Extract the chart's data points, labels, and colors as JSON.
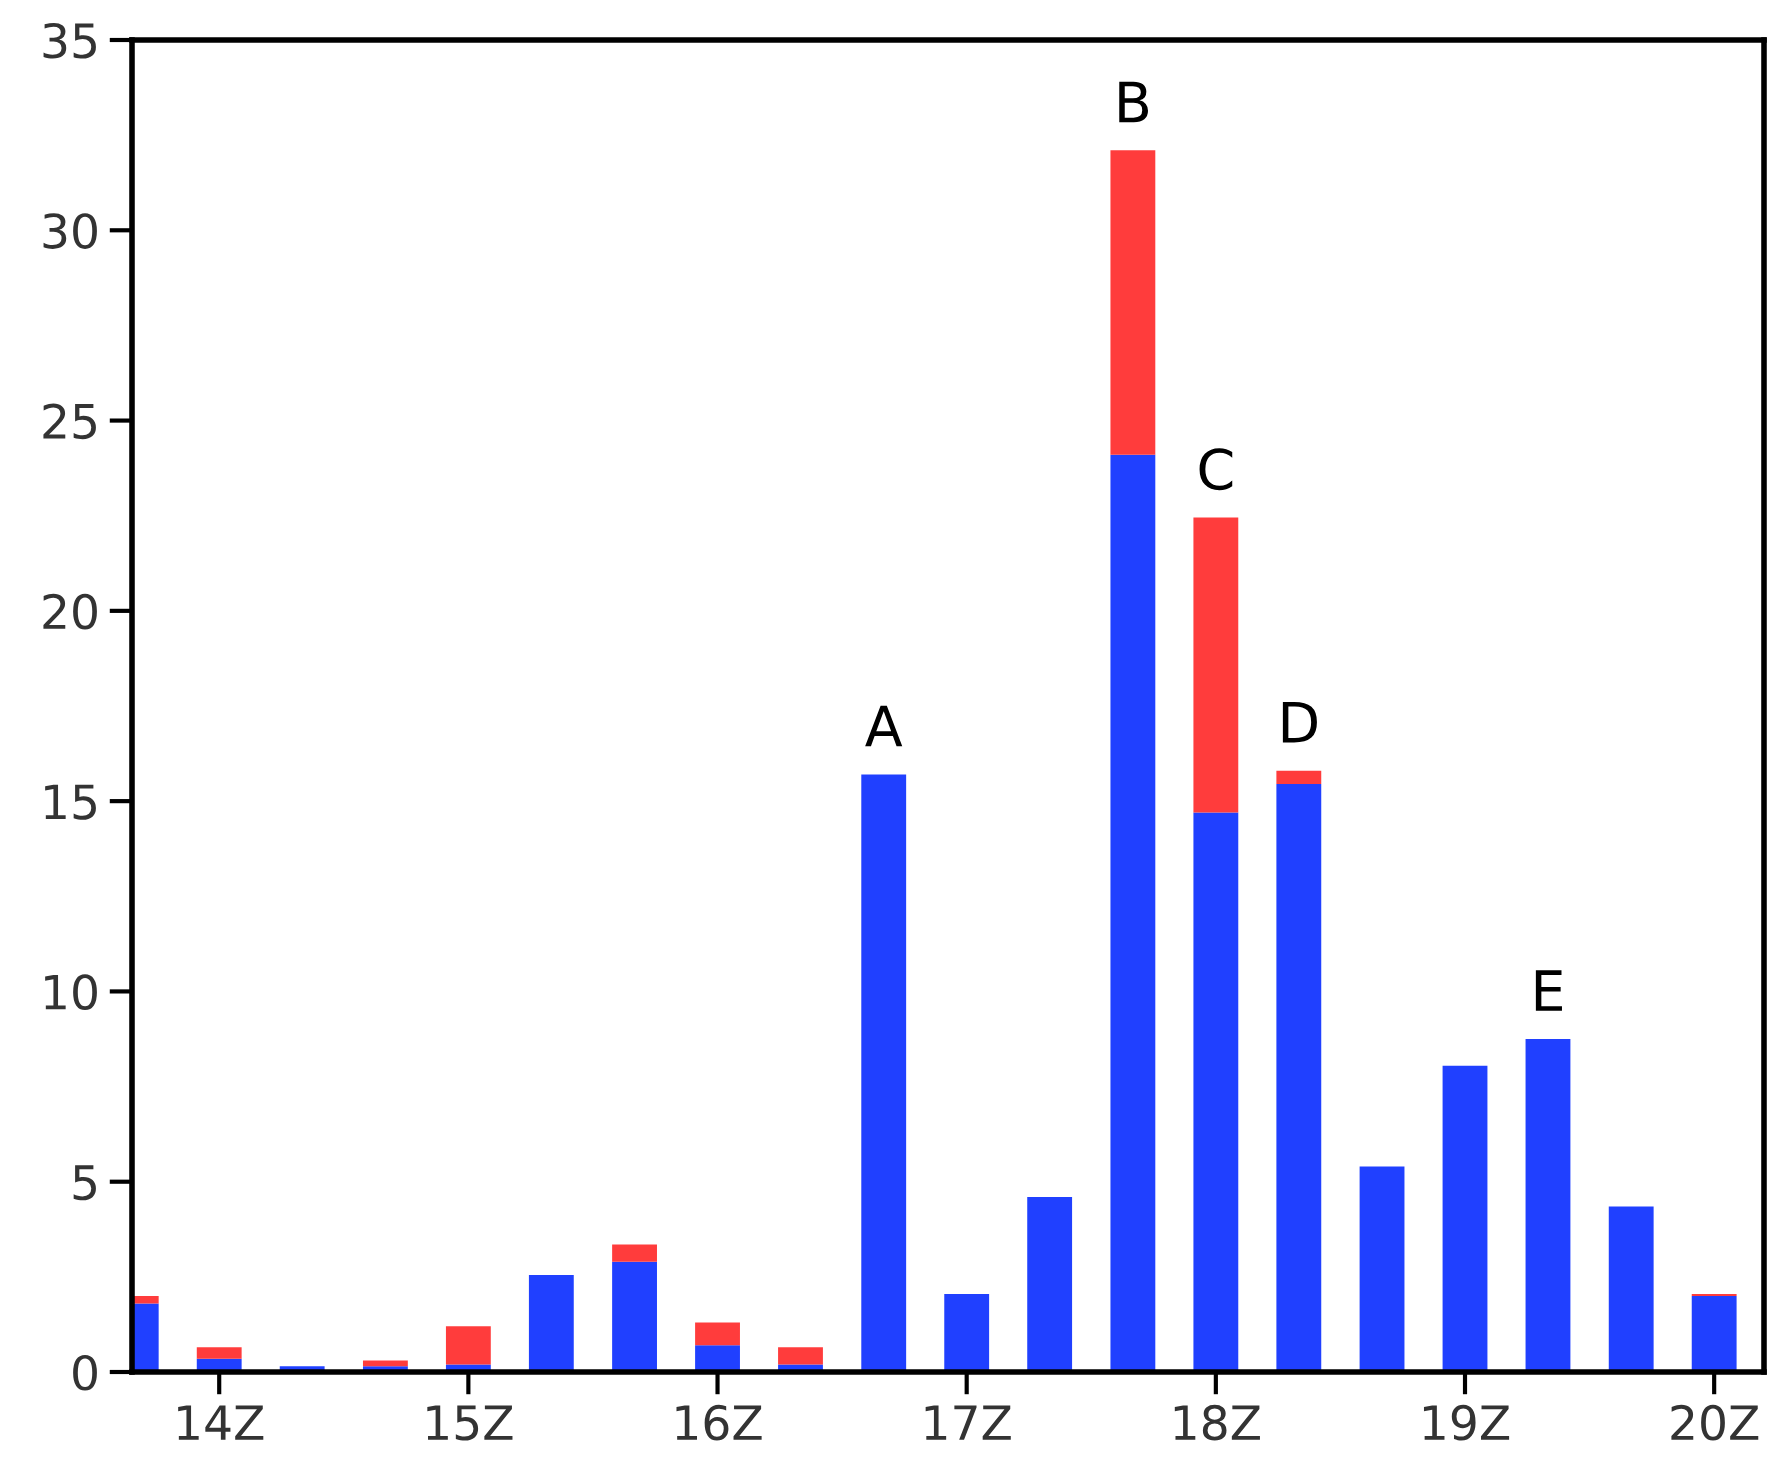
{
  "chart_data": {
    "type": "bar",
    "stacked": true,
    "x": [
      13.667,
      14.0,
      14.333,
      14.667,
      15.0,
      15.333,
      15.667,
      16.0,
      16.333,
      16.667,
      17.0,
      17.333,
      17.667,
      18.0,
      18.333,
      18.667,
      19.0,
      19.333,
      19.667,
      20.0
    ],
    "series": [
      {
        "color": "#2040ff",
        "values": [
          1.8,
          0.35,
          0.15,
          0.15,
          0.2,
          2.55,
          2.9,
          0.7,
          0.2,
          15.7,
          2.05,
          4.6,
          24.1,
          14.7,
          15.45,
          5.4,
          8.05,
          8.75,
          4.35,
          2.0
        ]
      },
      {
        "color": "#ff3c3c",
        "values": [
          0.2,
          0.3,
          null,
          0.15,
          1.0,
          null,
          0.45,
          0.6,
          0.45,
          null,
          null,
          null,
          8.0,
          7.75,
          0.35,
          null,
          null,
          null,
          null,
          0.05
        ]
      }
    ],
    "xlim": [
      13.65,
      20.2
    ],
    "xticks": [
      {
        "value": 14,
        "label": "14Z"
      },
      {
        "value": 15,
        "label": "15Z"
      },
      {
        "value": 16,
        "label": "16Z"
      },
      {
        "value": 17,
        "label": "17Z"
      },
      {
        "value": 18,
        "label": "18Z"
      },
      {
        "value": 19,
        "label": "19Z"
      },
      {
        "value": 20,
        "label": "20Z"
      }
    ],
    "ylim": [
      0,
      35
    ],
    "yticks": [
      0,
      5,
      10,
      15,
      20,
      25,
      30,
      35
    ],
    "grid": false,
    "annotations": [
      {
        "text": "A",
        "x": 16.667,
        "y": 15.7
      },
      {
        "text": "B",
        "x": 17.667,
        "y": 32.1
      },
      {
        "text": "C",
        "x": 18.0,
        "y": 22.45
      },
      {
        "text": "D",
        "x": 18.333,
        "y": 15.8
      },
      {
        "text": "E",
        "x": 19.333,
        "y": 8.75
      }
    ]
  }
}
